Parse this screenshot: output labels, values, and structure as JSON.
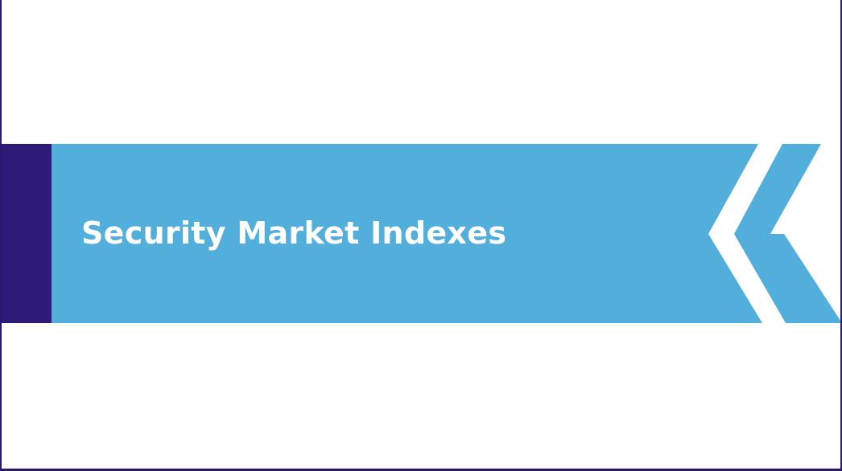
{
  "slide": {
    "title": "Security Market Indexes"
  },
  "colors": {
    "banner": "#52aedb",
    "accent": "#2e1a78",
    "background": "#ffffff",
    "title_text": "#ffffff"
  },
  "decorations": {
    "banner_end": "double-chevron-arrow"
  }
}
